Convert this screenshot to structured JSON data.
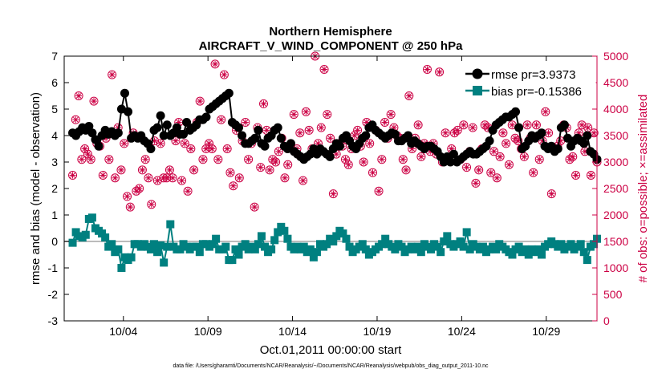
{
  "chart_data": {
    "type": "line",
    "title": "Northern Hemisphere",
    "subtitle": "AIRCRAFT_V_WIND_COMPONENT @ 250 hPa",
    "xlabel": "Oct.01,2011 00:00:00 start",
    "ylabel": "rmse and bias (model - observation)",
    "ylabel_right": "# of obs: o=possible; ×=assimilated",
    "footnote": "data file: /Users/gharamti/Documents/NCAR/Reanalysis/~/Documents/NCAR/Reanalysis/webpub/obs_diag_output_2011-10.nc",
    "x_range": [
      0.5,
      32.0
    ],
    "ylim": [
      -3,
      7
    ],
    "ylim_right": [
      0,
      5000
    ],
    "x_ticks": [
      {
        "value": 4,
        "label": "10/04"
      },
      {
        "value": 9,
        "label": "10/09"
      },
      {
        "value": 14,
        "label": "10/14"
      },
      {
        "value": 19,
        "label": "10/19"
      },
      {
        "value": 24,
        "label": "10/24"
      },
      {
        "value": 29,
        "label": "10/29"
      }
    ],
    "y_ticks": [
      "-3",
      "-2",
      "-1",
      "0",
      "1",
      "2",
      "3",
      "4",
      "5",
      "6",
      "7"
    ],
    "y_ticks_right": [
      "0",
      "500",
      "1000",
      "1500",
      "2000",
      "2500",
      "3000",
      "3500",
      "4000",
      "4500",
      "5000"
    ],
    "legend": {
      "position": "top-right",
      "entries": [
        "rmse pr=3.9373",
        "bias pr=-0.15386"
      ]
    },
    "series": [
      {
        "name": "rmse",
        "color": "#000000",
        "marker": "circle",
        "values": [
          4.1,
          4.0,
          4.15,
          4.3,
          4.2,
          4.35,
          4.1,
          3.85,
          3.6,
          4.0,
          4.2,
          4.05,
          4.15,
          4.0,
          4.1,
          5.0,
          5.6,
          4.9,
          3.9,
          4.0,
          3.9,
          4.0,
          3.8,
          3.7,
          3.5,
          4.2,
          4.3,
          4.75,
          4.0,
          4.4,
          4.0,
          4.1,
          4.3,
          4.05,
          4.05,
          4.5,
          4.2,
          4.3,
          4.4,
          4.6,
          4.6,
          4.7,
          5.0,
          5.1,
          5.2,
          5.3,
          5.4,
          5.5,
          5.6,
          4.5,
          4.4,
          4.3,
          4.0,
          3.7,
          3.7,
          3.8,
          3.9,
          4.2,
          3.7,
          3.6,
          3.9,
          4.0,
          4.2,
          4.3,
          3.9,
          3.6,
          3.5,
          3.7,
          3.4,
          3.3,
          3.2,
          3.1,
          3.2,
          3.3,
          3.5,
          3.3,
          3.5,
          3.4,
          3.3,
          3.2,
          3.5,
          3.7,
          3.6,
          3.9,
          4.0,
          3.8,
          3.6,
          3.5,
          3.7,
          3.9,
          4.0,
          4.3,
          4.4,
          4.2,
          4.1,
          4.0,
          3.9,
          4.0,
          4.1,
          4.05,
          3.8,
          3.8,
          3.9,
          4.0,
          3.7,
          3.8,
          3.7,
          3.6,
          3.5,
          3.6,
          3.6,
          3.5,
          3.4,
          3.2,
          3.0,
          3.2,
          3.0,
          3.3,
          3.0,
          3.1,
          3.2,
          3.3,
          3.4,
          3.3,
          3.3,
          3.4,
          3.5,
          3.6,
          3.8,
          4.2,
          4.4,
          4.5,
          4.6,
          4.7,
          4.7,
          4.8,
          4.9,
          4.3,
          3.5,
          3.6,
          3.8,
          4.0,
          3.9,
          4.0,
          4.1,
          3.6,
          3.5,
          3.6,
          3.4,
          3.5,
          4.3,
          4.4,
          3.9,
          3.6,
          3.8,
          3.9,
          3.8,
          3.7,
          4.0,
          3.4,
          3.3,
          3.1
        ]
      },
      {
        "name": "bias",
        "color": "#008080",
        "marker": "square",
        "values": [
          -0.05,
          0.35,
          0.2,
          0.15,
          0.25,
          0.85,
          0.9,
          0.5,
          0.4,
          0.3,
          0.15,
          -0.2,
          -0.1,
          -0.4,
          -0.3,
          -1.0,
          -0.6,
          -0.7,
          -0.6,
          -0.1,
          -0.1,
          -0.2,
          -0.1,
          -0.2,
          -0.3,
          -0.1,
          -0.4,
          -0.15,
          -0.8,
          -0.2,
          0.65,
          -0.2,
          -0.3,
          -0.3,
          -0.1,
          -0.2,
          -0.3,
          -0.2,
          -0.2,
          -0.4,
          -0.1,
          -0.1,
          -0.2,
          -0.1,
          0.1,
          -0.3,
          -0.3,
          -0.2,
          -0.7,
          -0.7,
          -0.3,
          -0.5,
          -0.2,
          -0.1,
          -0.3,
          -0.2,
          -0.3,
          -0.1,
          0.2,
          -0.2,
          -0.4,
          -0.3,
          0.05,
          0.35,
          0.55,
          0.4,
          0.1,
          -0.2,
          -0.3,
          -0.2,
          -0.3,
          -0.2,
          -0.4,
          -0.3,
          -0.6,
          -0.4,
          -0.1,
          -0.2,
          -0.1,
          0.1,
          0.0,
          0.2,
          0.4,
          0.3,
          0.1,
          -0.2,
          -0.4,
          -0.3,
          -0.2,
          -0.1,
          -0.3,
          -0.5,
          -0.4,
          -0.3,
          -0.2,
          -0.1,
          0.1,
          -0.1,
          -0.2,
          -0.3,
          -0.1,
          -0.2,
          -0.4,
          -0.3,
          -0.2,
          -0.3,
          -0.2,
          -0.4,
          -0.1,
          -0.2,
          -0.3,
          -0.1,
          -0.2,
          -0.4,
          0.0,
          0.2,
          -0.1,
          -0.2,
          -0.1,
          0.0,
          -0.2,
          0.35,
          -0.3,
          -0.1,
          -0.2,
          -0.3,
          -0.2,
          -0.4,
          -0.3,
          -0.2,
          -0.3,
          -0.1,
          -0.2,
          -0.3,
          -0.4,
          -0.5,
          -0.3,
          -0.2,
          -0.4,
          -0.3,
          -0.5,
          -0.3,
          -0.4,
          -0.3,
          -0.5,
          -0.2,
          -0.1,
          0.0,
          -0.1,
          -0.2,
          -0.1,
          -0.3,
          -0.2,
          -0.1,
          -0.3,
          -0.2,
          -0.1,
          -0.4,
          -0.7,
          -0.2,
          -0.1,
          0.1
        ]
      },
      {
        "name": "possible",
        "color": "#cc0044",
        "marker": "circle-open",
        "axis": "right",
        "values": [
          2750,
          3800,
          4250,
          3050,
          3250,
          3150,
          3050,
          4150,
          3350,
          3300,
          2750,
          3450,
          3050,
          4650,
          2700,
          3650,
          2850,
          3350,
          2350,
          2150,
          3550,
          2450,
          2500,
          2850,
          3050,
          2700,
          2200,
          3400,
          2650,
          3350,
          2700,
          2700,
          2850,
          2700,
          3400,
          3750,
          2650,
          3350,
          2450,
          3250,
          2850,
          3750,
          4150,
          3050,
          3250,
          3350,
          3250,
          4850,
          3050,
          3800,
          4650,
          3250,
          2800,
          2550,
          3600,
          2700,
          3400,
          3750,
          3050,
          3350,
          2150,
          3650,
          2900,
          4100,
          3600,
          2850,
          3050,
          3000,
          3200,
          3450,
          2700,
          2950,
          3300,
          3900,
          3250,
          3550,
          2650,
          3950,
          3600,
          3250,
          5000,
          3350,
          3650,
          4750,
          3900,
          3450,
          2400,
          3150,
          3350,
          3300,
          3050,
          2950,
          3250,
          3500,
          3600,
          3300,
          3000,
          3750,
          3350,
          2800,
          3600,
          2450,
          3050,
          3750,
          3450,
          3900,
          3650,
          3500,
          3450,
          3050,
          2850,
          4250,
          3250,
          3450,
          3700,
          3100,
          3350,
          4750,
          3200,
          3350,
          3150,
          4700,
          3000,
          3550,
          3050,
          3250,
          3550,
          3600,
          3050,
          3700,
          2900,
          3200,
          3650,
          2600,
          2850,
          3250,
          3700,
          3650,
          2800,
          3200,
          2700,
          3100,
          3550,
          3350,
          2950,
          3700,
          3450,
          3400,
          3250,
          3100,
          3700,
          3450,
          2800,
          3700,
          3050,
          3400,
          3950,
          3550,
          2400,
          3250,
          3300,
          3400,
          3700,
          3650,
          3050,
          3100,
          2750,
          3550,
          3700,
          3200,
          3650,
          2750,
          3550,
          3000
        ]
      },
      {
        "name": "assimilated",
        "color": "#cc0044",
        "marker": "asterisk",
        "axis": "right",
        "values": [
          2750,
          3800,
          4250,
          3050,
          3250,
          3150,
          3050,
          4150,
          3350,
          3300,
          2750,
          3450,
          3050,
          4650,
          2700,
          3650,
          2850,
          3350,
          2350,
          2150,
          3550,
          2450,
          2500,
          2850,
          3050,
          2700,
          2200,
          3400,
          2650,
          3350,
          2700,
          2700,
          2850,
          2700,
          3400,
          3750,
          2650,
          3350,
          2450,
          3250,
          2850,
          3750,
          4150,
          3050,
          3250,
          3350,
          3250,
          4850,
          3050,
          3800,
          4650,
          3250,
          2800,
          2550,
          3600,
          2700,
          3400,
          3750,
          3050,
          3350,
          2150,
          3650,
          2900,
          4100,
          3600,
          2850,
          3050,
          3000,
          3200,
          3450,
          2700,
          2950,
          3300,
          3900,
          3250,
          3550,
          2650,
          3950,
          3600,
          3250,
          5000,
          3350,
          3650,
          4750,
          3900,
          3450,
          2400,
          3150,
          3350,
          3300,
          3050,
          2950,
          3250,
          3500,
          3600,
          3300,
          3000,
          3750,
          3350,
          2800,
          3600,
          2450,
          3050,
          3750,
          3450,
          3900,
          3650,
          3500,
          3450,
          3050,
          2850,
          4250,
          3250,
          3450,
          3700,
          3100,
          3350,
          4750,
          3200,
          3350,
          3150,
          4700,
          3000,
          3550,
          3050,
          3250,
          3550,
          3600,
          3050,
          3700,
          2900,
          3200,
          3650,
          2600,
          2850,
          3250,
          3700,
          3650,
          2800,
          3200,
          2700,
          3100,
          3550,
          3350,
          2950,
          3700,
          3450,
          3400,
          3250,
          3100,
          3700,
          3450,
          2800,
          3700,
          3050,
          3400,
          3950,
          3550,
          2400,
          3250,
          3300,
          3400,
          3700,
          3650,
          3050,
          3100,
          2750,
          3550,
          3700,
          3200,
          3650,
          2750,
          3550,
          3000
        ]
      }
    ]
  }
}
